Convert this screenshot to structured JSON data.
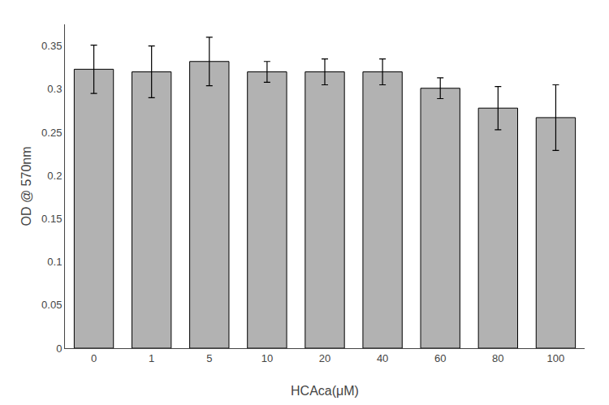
{
  "chart_data": {
    "type": "bar",
    "categories": [
      "0",
      "1",
      "5",
      "10",
      "20",
      "40",
      "60",
      "80",
      "100"
    ],
    "values": [
      0.323,
      0.32,
      0.332,
      0.32,
      0.32,
      0.32,
      0.301,
      0.278,
      0.267
    ],
    "errors": [
      0.028,
      0.03,
      0.028,
      0.012,
      0.015,
      0.015,
      0.012,
      0.025,
      0.038
    ],
    "color": "#b2b2b2",
    "xlabel": "HCAca(μM)",
    "ylabel": "OD @ 570nm",
    "ylim": [
      0,
      0.375
    ],
    "yticks": [
      0,
      0.05,
      0.1,
      0.15,
      0.2,
      0.25,
      0.3,
      0.35
    ],
    "grid": false
  }
}
